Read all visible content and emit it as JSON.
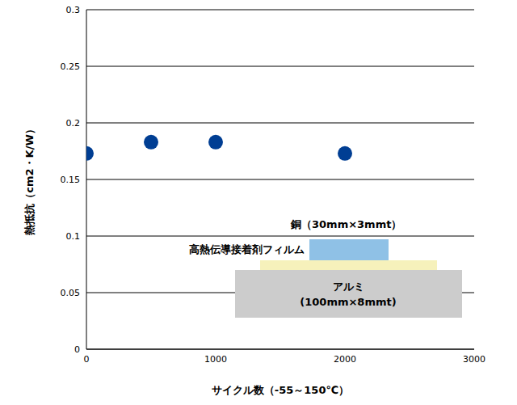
{
  "chart_data": {
    "type": "scatter",
    "x_label": "サイクル数（-55～150℃）",
    "y_label": "熱抵抗（cm2・K/W）",
    "x": [
      0,
      500,
      1000,
      2000
    ],
    "values": [
      0.173,
      0.183,
      0.183,
      0.173
    ],
    "color": "#003e93",
    "marker": "circle",
    "xlim": [
      0,
      3000
    ],
    "xticks": [
      0,
      1000,
      2000,
      3000
    ],
    "ylim": [
      0,
      0.3
    ],
    "yticks": [
      0,
      0.05,
      0.1,
      0.15,
      0.2,
      0.25,
      0.3
    ],
    "grid": true,
    "annotations": [
      "銅（30mm×3mmt）",
      "高熱伝導接着剤フィルム",
      "アルミ",
      "(100mm×8mmt)"
    ]
  }
}
